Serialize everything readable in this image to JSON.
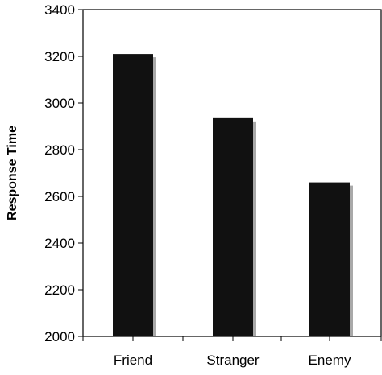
{
  "chart_data": {
    "type": "bar",
    "title": "",
    "xlabel": "",
    "ylabel": "Response Time",
    "categories": [
      "Friend",
      "Stranger",
      "Enemy"
    ],
    "values": [
      3210,
      2935,
      2660
    ],
    "ylim": [
      2000,
      3400
    ],
    "yticks": [
      2000,
      2200,
      2400,
      2600,
      2800,
      3000,
      3200,
      3400
    ],
    "grid": false,
    "legend": "none",
    "bar_color": "#111111",
    "bar_shadow_color": "#a9a9a9"
  }
}
